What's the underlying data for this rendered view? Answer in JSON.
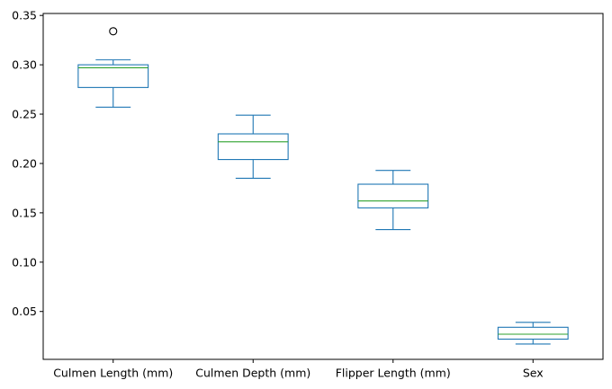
{
  "chart_data": {
    "type": "box",
    "title": "",
    "xlabel": "",
    "ylabel": "",
    "ylim": [
      0.0015,
      0.352
    ],
    "yticks": [
      0.05,
      0.1,
      0.15,
      0.2,
      0.25,
      0.3,
      0.35
    ],
    "ytick_labels": [
      "0.05",
      "0.10",
      "0.15",
      "0.20",
      "0.25",
      "0.30",
      "0.35"
    ],
    "grid": false,
    "legend": "none",
    "colors": {
      "box": "#1f77b4",
      "median": "#2ca02c",
      "outlier": "#000000",
      "axes": "#000000"
    },
    "categories": [
      "Culmen Length (mm)",
      "Culmen Depth (mm)",
      "Flipper Length (mm)",
      "Sex"
    ],
    "boxes": [
      {
        "whisker_low": 0.257,
        "q1": 0.277,
        "median": 0.297,
        "q3": 0.3,
        "whisker_high": 0.305,
        "outliers": [
          0.334
        ]
      },
      {
        "whisker_low": 0.185,
        "q1": 0.204,
        "median": 0.222,
        "q3": 0.23,
        "whisker_high": 0.249,
        "outliers": []
      },
      {
        "whisker_low": 0.133,
        "q1": 0.155,
        "median": 0.162,
        "q3": 0.179,
        "whisker_high": 0.193,
        "outliers": []
      },
      {
        "whisker_low": 0.017,
        "q1": 0.022,
        "median": 0.027,
        "q3": 0.034,
        "whisker_high": 0.039,
        "outliers": []
      }
    ]
  }
}
